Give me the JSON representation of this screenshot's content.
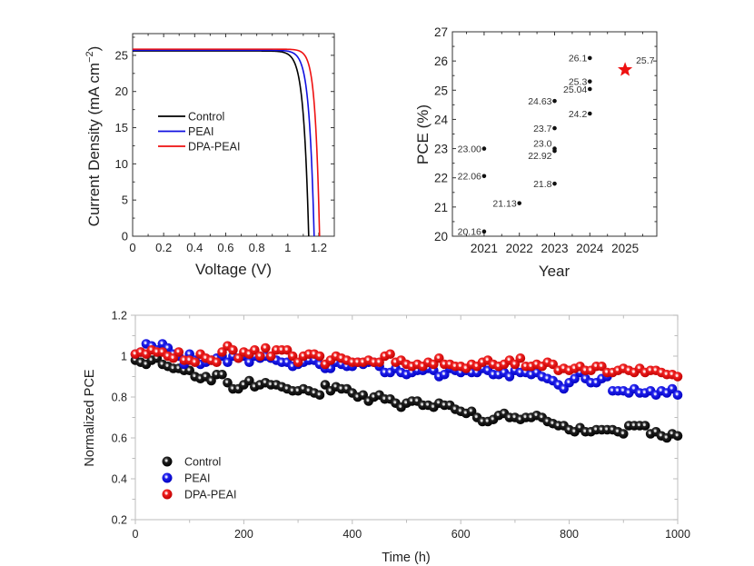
{
  "chart_data": [
    {
      "type": "line",
      "title": "",
      "xlabel": "Voltage (V)",
      "ylabel": "Current Density (mA cm",
      "ylabel_superscript": "−2",
      "ylabel_suffix": ")",
      "xlim": [
        0,
        1.3
      ],
      "ylim": [
        0,
        28
      ],
      "xticks": [
        0,
        0.2,
        0.4,
        0.6,
        0.8,
        1,
        1.2
      ],
      "xtick_labels": [
        "0",
        "0.2",
        "0.4",
        "0.6",
        "0.8",
        "1",
        "1.2"
      ],
      "yticks": [
        0,
        5,
        10,
        15,
        20,
        25
      ],
      "ytick_labels": [
        "0",
        "5",
        "10",
        "15",
        "20",
        "25"
      ],
      "legend_position": "center-left",
      "series": [
        {
          "name": "Control",
          "color": "#000000",
          "jsc": 25.6,
          "voc": 1.135,
          "n_vt": 0.033
        },
        {
          "name": "PEAI",
          "color": "#1010e0",
          "jsc": 25.7,
          "voc": 1.17,
          "n_vt": 0.032
        },
        {
          "name": "DPA-PEAI",
          "color": "#ee1111",
          "jsc": 25.85,
          "voc": 1.205,
          "n_vt": 0.028
        }
      ]
    },
    {
      "type": "scatter",
      "title": "",
      "xlabel": "Year",
      "ylabel": "PCE (%)",
      "xlim": [
        2020.1,
        2025.9
      ],
      "ylim": [
        20,
        27
      ],
      "xticks": [
        2021,
        2022,
        2023,
        2024,
        2025
      ],
      "xtick_labels": [
        "2021",
        "2022",
        "2023",
        "2024",
        "2025"
      ],
      "yticks": [
        20,
        21,
        22,
        23,
        24,
        25,
        26,
        27
      ],
      "ytick_labels": [
        "20",
        "21",
        "22",
        "23",
        "24",
        "25",
        "26",
        "27"
      ],
      "points": [
        {
          "x": 2021,
          "y": 23.0,
          "label": "23.00"
        },
        {
          "x": 2021,
          "y": 22.06,
          "label": "22.06"
        },
        {
          "x": 2021,
          "y": 20.16,
          "label": "20.16"
        },
        {
          "x": 2022,
          "y": 21.13,
          "label": "21.13"
        },
        {
          "x": 2023,
          "y": 24.63,
          "label": "24.63"
        },
        {
          "x": 2023,
          "y": 23.7,
          "label": "23.7"
        },
        {
          "x": 2023,
          "y": 23.0,
          "label": "23.0"
        },
        {
          "x": 2023,
          "y": 22.92,
          "label": "22.92"
        },
        {
          "x": 2023,
          "y": 21.8,
          "label": "21.8"
        },
        {
          "x": 2024,
          "y": 26.1,
          "label": "26.1"
        },
        {
          "x": 2024,
          "y": 25.3,
          "label": "25.3"
        },
        {
          "x": 2024,
          "y": 25.04,
          "label": "25.04"
        },
        {
          "x": 2024,
          "y": 24.2,
          "label": "24.2"
        }
      ],
      "highlight": {
        "x": 2025,
        "y": 25.7,
        "label": "25.7",
        "marker": "star",
        "color": "#ee1111"
      }
    },
    {
      "type": "scatter",
      "title": "",
      "xlabel": "Time (h)",
      "ylabel": "Normalized PCE",
      "xlim": [
        0,
        1000
      ],
      "ylim": [
        0.2,
        1.2
      ],
      "xticks": [
        0,
        200,
        400,
        600,
        800,
        1000
      ],
      "xtick_labels": [
        "0",
        "200",
        "400",
        "600",
        "800",
        "1000"
      ],
      "yticks": [
        0.2,
        0.4,
        0.6,
        0.8,
        1.0,
        1.2
      ],
      "ytick_labels": [
        "0.2",
        "0.4",
        "0.6",
        "0.8",
        "1",
        "1.2"
      ],
      "legend_position": "bottom-left",
      "x": [
        0,
        10,
        20,
        30,
        40,
        50,
        60,
        70,
        80,
        90,
        100,
        110,
        120,
        130,
        140,
        150,
        160,
        170,
        180,
        190,
        200,
        210,
        220,
        230,
        240,
        250,
        260,
        270,
        280,
        290,
        300,
        310,
        320,
        330,
        340,
        350,
        360,
        370,
        380,
        390,
        400,
        410,
        420,
        430,
        440,
        450,
        460,
        470,
        480,
        490,
        500,
        510,
        520,
        530,
        540,
        550,
        560,
        570,
        580,
        590,
        600,
        610,
        620,
        630,
        640,
        650,
        660,
        670,
        680,
        690,
        700,
        710,
        720,
        730,
        740,
        750,
        760,
        770,
        780,
        790,
        800,
        810,
        820,
        830,
        840,
        850,
        860,
        870,
        880,
        890,
        900,
        910,
        920,
        930,
        940,
        950,
        960,
        970,
        980,
        990,
        1000
      ],
      "series": [
        {
          "name": "Control",
          "color": "#000000",
          "values": [
            0.98,
            0.97,
            0.96,
            0.98,
            0.99,
            0.96,
            0.95,
            0.94,
            0.94,
            0.93,
            0.93,
            0.9,
            0.89,
            0.9,
            0.88,
            0.91,
            0.91,
            0.87,
            0.84,
            0.84,
            0.86,
            0.88,
            0.85,
            0.86,
            0.87,
            0.86,
            0.86,
            0.85,
            0.84,
            0.83,
            0.83,
            0.84,
            0.83,
            0.82,
            0.81,
            0.86,
            0.83,
            0.85,
            0.84,
            0.84,
            0.82,
            0.8,
            0.81,
            0.78,
            0.8,
            0.81,
            0.79,
            0.79,
            0.77,
            0.75,
            0.77,
            0.78,
            0.78,
            0.76,
            0.76,
            0.75,
            0.77,
            0.76,
            0.76,
            0.74,
            0.73,
            0.72,
            0.73,
            0.7,
            0.68,
            0.68,
            0.69,
            0.71,
            0.72,
            0.7,
            0.7,
            0.69,
            0.7,
            0.7,
            0.71,
            0.7,
            0.68,
            0.67,
            0.66,
            0.66,
            0.64,
            0.63,
            0.65,
            0.63,
            0.63,
            0.64,
            0.64,
            0.64,
            0.64,
            0.63,
            0.62,
            0.66,
            0.66,
            0.66,
            0.66,
            0.62,
            0.63,
            0.61,
            0.6,
            0.62,
            0.61
          ]
        },
        {
          "name": "PEAI",
          "color": "#1010e8",
          "values": [
            1.01,
            1.02,
            1.06,
            1.05,
            1.03,
            1.06,
            1.04,
            1.01,
            1.0,
            0.96,
            1.01,
            0.98,
            0.96,
            0.97,
            0.98,
            0.99,
            1.0,
            0.97,
            1.0,
            0.99,
            1.0,
            0.97,
            1.0,
            0.99,
            1.0,
            0.99,
            0.98,
            0.97,
            0.97,
            0.95,
            0.96,
            0.97,
            0.98,
            0.98,
            0.96,
            0.94,
            0.94,
            0.97,
            0.96,
            0.95,
            0.95,
            0.97,
            0.96,
            0.97,
            0.97,
            0.95,
            0.92,
            0.92,
            0.94,
            0.92,
            0.91,
            0.92,
            0.93,
            0.93,
            0.94,
            0.93,
            0.9,
            0.91,
            0.94,
            0.93,
            0.92,
            0.93,
            0.92,
            0.92,
            0.94,
            0.93,
            0.91,
            0.91,
            0.92,
            0.9,
            0.93,
            0.92,
            0.92,
            0.91,
            0.92,
            0.9,
            0.89,
            0.88,
            0.86,
            0.84,
            0.87,
            0.89,
            0.92,
            0.89,
            0.87,
            0.87,
            0.89,
            0.9,
            0.83,
            0.83,
            0.83,
            0.82,
            0.84,
            0.82,
            0.82,
            0.83,
            0.81,
            0.83,
            0.82,
            0.84,
            0.81
          ]
        },
        {
          "name": "DPA-PEAI",
          "color": "#ee1111",
          "values": [
            1.01,
            1.02,
            1.01,
            1.03,
            1.02,
            1.02,
            1.0,
            0.99,
            1.02,
            0.98,
            0.98,
            0.97,
            1.01,
            0.99,
            0.98,
            0.97,
            1.02,
            1.05,
            1.03,
            0.99,
            1.02,
            1.01,
            1.03,
            1.0,
            1.04,
            1.0,
            1.03,
            1.03,
            1.03,
            1.0,
            0.97,
            1.0,
            1.01,
            1.01,
            1.0,
            0.96,
            0.98,
            1.0,
            0.99,
            0.98,
            0.97,
            0.97,
            0.97,
            0.98,
            0.97,
            0.97,
            1.0,
            1.01,
            0.97,
            0.98,
            0.96,
            0.95,
            0.96,
            0.95,
            0.97,
            0.96,
            0.99,
            0.96,
            0.96,
            0.95,
            0.95,
            0.94,
            0.96,
            0.95,
            0.97,
            0.98,
            0.96,
            0.95,
            0.96,
            0.98,
            0.96,
            0.99,
            0.95,
            0.95,
            0.96,
            0.95,
            0.97,
            0.96,
            0.93,
            0.94,
            0.93,
            0.94,
            0.95,
            0.93,
            0.93,
            0.95,
            0.95,
            0.92,
            0.92,
            0.93,
            0.94,
            0.93,
            0.92,
            0.94,
            0.92,
            0.93,
            0.93,
            0.92,
            0.91,
            0.91,
            0.9
          ]
        }
      ]
    }
  ]
}
